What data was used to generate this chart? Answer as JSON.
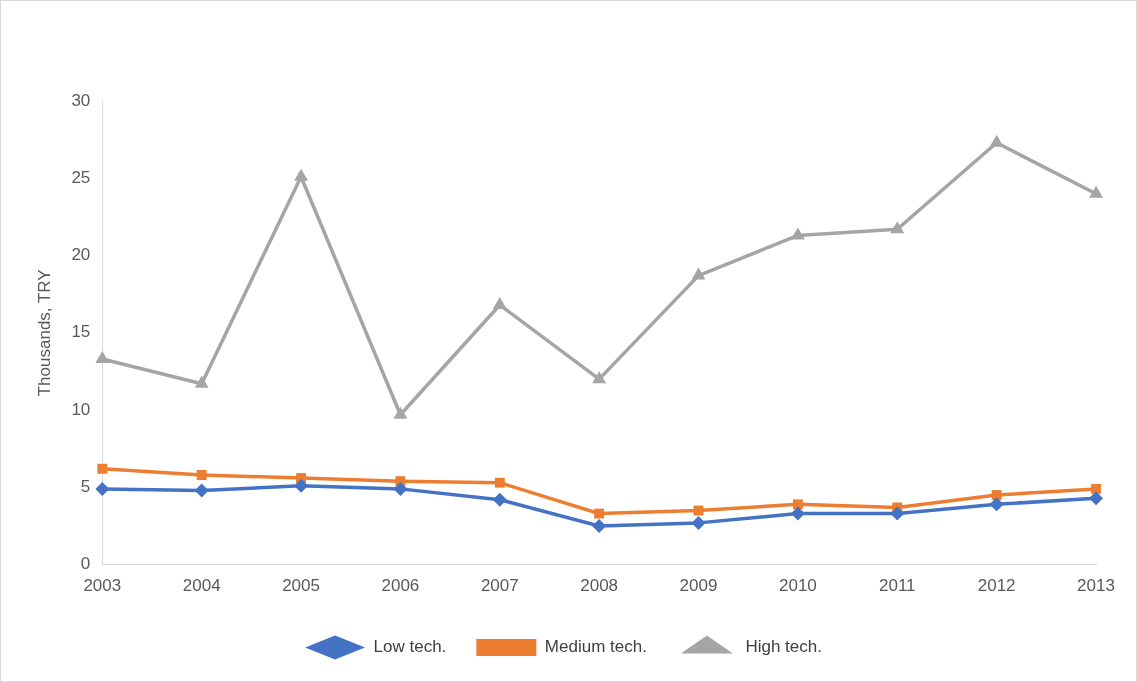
{
  "chart_data": {
    "type": "line",
    "ylabel": "Thousands, TRY",
    "categories": [
      "2003",
      "2004",
      "2005",
      "2006",
      "2007",
      "2008",
      "2009",
      "2010",
      "2011",
      "2012",
      "2013"
    ],
    "series": [
      {
        "name": "Low tech.",
        "color": "#4472c4",
        "marker": "diamond",
        "values": [
          4.9,
          4.8,
          5.1,
          4.9,
          4.2,
          2.5,
          2.7,
          3.3,
          3.3,
          3.9,
          4.3
        ]
      },
      {
        "name": "Medium tech.",
        "color": "#ed7d31",
        "marker": "square",
        "values": [
          6.2,
          5.8,
          5.6,
          5.4,
          5.3,
          3.3,
          3.5,
          3.9,
          3.7,
          4.5,
          4.9
        ]
      },
      {
        "name": "High tech.",
        "color": "#a5a5a5",
        "marker": "triangle",
        "values": [
          13.3,
          11.7,
          25.1,
          9.7,
          16.8,
          12.0,
          18.7,
          21.3,
          21.7,
          27.3,
          24.0
        ]
      }
    ],
    "ylim": [
      0,
      30
    ],
    "yticks": [
      0,
      5,
      10,
      15,
      20,
      25,
      30
    ],
    "grid": false,
    "legend": "bottom",
    "line_style": "solid"
  }
}
